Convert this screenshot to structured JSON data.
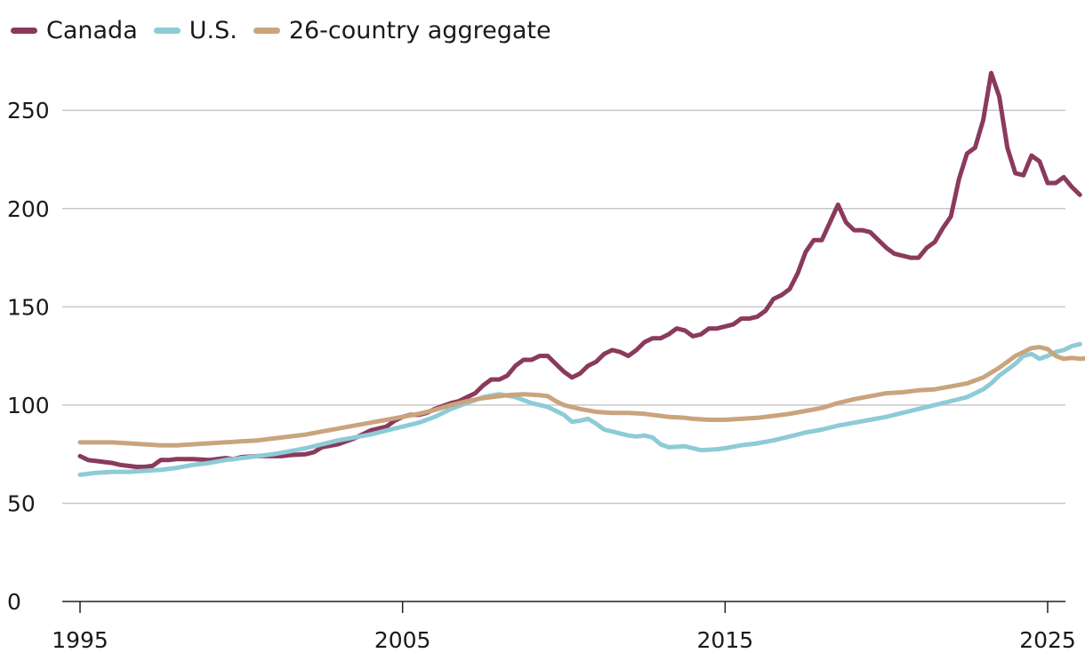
{
  "chart_data": {
    "type": "line",
    "title": "",
    "xlabel": "",
    "ylabel": "",
    "xlim": [
      1995,
      2025
    ],
    "ylim": [
      0,
      270
    ],
    "yticks": [
      0,
      50,
      100,
      150,
      200,
      250
    ],
    "xticks": [
      1995,
      2005,
      2015,
      2025
    ],
    "grid": true,
    "legend_position": "top-left",
    "series": [
      {
        "name": "Canada",
        "color": "#8a3a5c",
        "points": [
          [
            1995.0,
            74
          ],
          [
            1995.25,
            72
          ],
          [
            1995.5,
            71.5
          ],
          [
            1995.75,
            71
          ],
          [
            1996.0,
            70.5
          ],
          [
            1996.25,
            69.5
          ],
          [
            1996.5,
            69
          ],
          [
            1996.75,
            68.5
          ],
          [
            1997.0,
            68.5
          ],
          [
            1997.25,
            69
          ],
          [
            1997.5,
            72
          ],
          [
            1997.75,
            72
          ],
          [
            1998.0,
            72.5
          ],
          [
            1998.5,
            72.5
          ],
          [
            1999.0,
            72
          ],
          [
            1999.5,
            73
          ],
          [
            1999.75,
            72.5
          ],
          [
            2000.0,
            73.5
          ],
          [
            2000.5,
            74
          ],
          [
            2001.0,
            74
          ],
          [
            2001.25,
            74
          ],
          [
            2001.5,
            74.5
          ],
          [
            2002.0,
            75
          ],
          [
            2002.25,
            76
          ],
          [
            2002.5,
            78.5
          ],
          [
            2003.0,
            80
          ],
          [
            2003.5,
            83
          ],
          [
            2004.0,
            87
          ],
          [
            2004.5,
            89
          ],
          [
            2004.75,
            92
          ],
          [
            2005.0,
            94
          ],
          [
            2005.25,
            95
          ],
          [
            2005.5,
            95
          ],
          [
            2005.75,
            96
          ],
          [
            2006.0,
            98
          ],
          [
            2006.25,
            99.5
          ],
          [
            2006.5,
            101
          ],
          [
            2006.75,
            102
          ],
          [
            2007.0,
            104
          ],
          [
            2007.25,
            106
          ],
          [
            2007.5,
            110
          ],
          [
            2007.75,
            113
          ],
          [
            2008.0,
            113
          ],
          [
            2008.25,
            115
          ],
          [
            2008.5,
            120
          ],
          [
            2008.75,
            123
          ],
          [
            2009.0,
            123
          ],
          [
            2009.25,
            125
          ],
          [
            2009.5,
            125
          ],
          [
            2009.75,
            121
          ],
          [
            2010.0,
            117
          ],
          [
            2010.25,
            114
          ],
          [
            2010.5,
            116
          ],
          [
            2010.75,
            120
          ],
          [
            2011.0,
            122
          ],
          [
            2011.25,
            126
          ],
          [
            2011.5,
            128
          ],
          [
            2011.75,
            127
          ],
          [
            2012.0,
            125
          ],
          [
            2012.25,
            128
          ],
          [
            2012.5,
            132
          ],
          [
            2012.75,
            134
          ],
          [
            2013.0,
            134
          ],
          [
            2013.25,
            136
          ],
          [
            2013.5,
            139
          ],
          [
            2013.75,
            138
          ],
          [
            2014.0,
            135
          ],
          [
            2014.25,
            136
          ],
          [
            2014.5,
            139
          ],
          [
            2014.75,
            139
          ],
          [
            2015.0,
            140
          ],
          [
            2015.25,
            141
          ],
          [
            2015.5,
            144
          ],
          [
            2015.75,
            144
          ],
          [
            2016.0,
            145
          ],
          [
            2016.25,
            148
          ],
          [
            2016.5,
            154
          ],
          [
            2016.75,
            156
          ],
          [
            2017.0,
            159
          ],
          [
            2017.25,
            167
          ],
          [
            2017.5,
            178
          ],
          [
            2017.75,
            184
          ],
          [
            2018.0,
            184
          ],
          [
            2018.25,
            193
          ],
          [
            2018.5,
            202
          ],
          [
            2018.75,
            193
          ],
          [
            2019.0,
            189
          ],
          [
            2019.25,
            189
          ],
          [
            2019.5,
            188
          ],
          [
            2019.75,
            184
          ],
          [
            2020.0,
            180
          ],
          [
            2020.25,
            177
          ],
          [
            2020.5,
            176
          ],
          [
            2020.75,
            175
          ],
          [
            2021.0,
            175
          ],
          [
            2021.25,
            180
          ],
          [
            2021.5,
            183
          ],
          [
            2021.75,
            190
          ],
          [
            2022.0,
            196
          ],
          [
            2022.25,
            215
          ],
          [
            2022.5,
            228
          ],
          [
            2022.75,
            231
          ],
          [
            2023.0,
            245
          ],
          [
            2023.25,
            269
          ],
          [
            2023.5,
            257
          ],
          [
            2023.75,
            231
          ],
          [
            2024.0,
            218
          ],
          [
            2024.25,
            217
          ],
          [
            2024.5,
            227
          ],
          [
            2024.75,
            224
          ],
          [
            2025.0,
            213
          ],
          [
            2025.25,
            213
          ],
          [
            2025.5,
            216
          ],
          [
            2025.75,
            211
          ],
          [
            2026.0,
            207
          ]
        ]
      },
      {
        "name": "U.S.",
        "color": "#8dcbd6",
        "points": [
          [
            1995.0,
            64.5
          ],
          [
            1995.5,
            65.5
          ],
          [
            1996.0,
            66
          ],
          [
            1996.5,
            66
          ],
          [
            1997.0,
            66.5
          ],
          [
            1997.5,
            67
          ],
          [
            1998.0,
            68
          ],
          [
            1998.5,
            69.5
          ],
          [
            1999.0,
            70.5
          ],
          [
            1999.5,
            72
          ],
          [
            2000.0,
            73
          ],
          [
            2000.5,
            74
          ],
          [
            2001.0,
            75
          ],
          [
            2001.5,
            76.5
          ],
          [
            2002.0,
            78
          ],
          [
            2002.5,
            80
          ],
          [
            2003.0,
            82
          ],
          [
            2003.5,
            83.5
          ],
          [
            2004.0,
            85
          ],
          [
            2004.5,
            87
          ],
          [
            2005.0,
            89
          ],
          [
            2005.5,
            91
          ],
          [
            2006.0,
            94
          ],
          [
            2006.5,
            98
          ],
          [
            2007.0,
            101
          ],
          [
            2007.5,
            104
          ],
          [
            2008.0,
            105.5
          ],
          [
            2008.5,
            104
          ],
          [
            2009.0,
            101
          ],
          [
            2009.5,
            99
          ],
          [
            2010.0,
            95
          ],
          [
            2010.25,
            91.5
          ],
          [
            2010.5,
            92
          ],
          [
            2010.75,
            93
          ],
          [
            2011.0,
            90.5
          ],
          [
            2011.25,
            87.5
          ],
          [
            2011.5,
            86.5
          ],
          [
            2012.0,
            84.5
          ],
          [
            2012.25,
            84
          ],
          [
            2012.5,
            84.5
          ],
          [
            2012.75,
            83.5
          ],
          [
            2013.0,
            80
          ],
          [
            2013.25,
            78.5
          ],
          [
            2013.75,
            79
          ],
          [
            2014.0,
            78
          ],
          [
            2014.25,
            77
          ],
          [
            2014.75,
            77.5
          ],
          [
            2015.0,
            78
          ],
          [
            2015.5,
            79.5
          ],
          [
            2016.0,
            80.5
          ],
          [
            2016.5,
            82
          ],
          [
            2017.0,
            84
          ],
          [
            2017.5,
            86
          ],
          [
            2018.0,
            87.5
          ],
          [
            2018.5,
            89.5
          ],
          [
            2019.0,
            91
          ],
          [
            2019.5,
            92.5
          ],
          [
            2020.0,
            94
          ],
          [
            2020.5,
            96
          ],
          [
            2021.0,
            98
          ],
          [
            2021.5,
            100
          ],
          [
            2022.0,
            102
          ],
          [
            2022.5,
            104
          ],
          [
            2023.0,
            108
          ],
          [
            2023.25,
            111
          ],
          [
            2023.5,
            115
          ],
          [
            2023.75,
            118
          ],
          [
            2024.0,
            121
          ],
          [
            2024.25,
            125
          ],
          [
            2024.5,
            126
          ],
          [
            2024.75,
            123.5
          ],
          [
            2025.0,
            125
          ],
          [
            2025.25,
            127
          ],
          [
            2025.5,
            128
          ],
          [
            2025.75,
            130
          ],
          [
            2026.0,
            131
          ]
        ]
      },
      {
        "name": "26-country aggregate",
        "color": "#c9a47c",
        "points": [
          [
            1995.0,
            81
          ],
          [
            1995.5,
            81
          ],
          [
            1996.0,
            81
          ],
          [
            1996.5,
            80.5
          ],
          [
            1997.0,
            80
          ],
          [
            1997.5,
            79.5
          ],
          [
            1998.0,
            79.5
          ],
          [
            1998.5,
            80
          ],
          [
            1999.0,
            80.5
          ],
          [
            1999.5,
            81
          ],
          [
            2000.0,
            81.5
          ],
          [
            2000.5,
            82
          ],
          [
            2001.0,
            83
          ],
          [
            2001.5,
            84
          ],
          [
            2002.0,
            85
          ],
          [
            2002.5,
            86.5
          ],
          [
            2003.0,
            88
          ],
          [
            2003.5,
            89.5
          ],
          [
            2004.0,
            91
          ],
          [
            2004.5,
            92.5
          ],
          [
            2005.0,
            94
          ],
          [
            2005.5,
            95.5
          ],
          [
            2006.0,
            97.5
          ],
          [
            2006.5,
            100
          ],
          [
            2007.0,
            102
          ],
          [
            2007.5,
            103.5
          ],
          [
            2008.0,
            104.5
          ],
          [
            2008.25,
            105
          ],
          [
            2008.75,
            105.5
          ],
          [
            2009.25,
            105
          ],
          [
            2009.5,
            104.5
          ],
          [
            2009.75,
            102
          ],
          [
            2010.0,
            100
          ],
          [
            2010.5,
            98
          ],
          [
            2011.0,
            96.5
          ],
          [
            2011.5,
            96
          ],
          [
            2012.0,
            96
          ],
          [
            2012.5,
            95.5
          ],
          [
            2013.0,
            94.5
          ],
          [
            2013.25,
            94
          ],
          [
            2013.75,
            93.5
          ],
          [
            2014.0,
            93
          ],
          [
            2014.5,
            92.5
          ],
          [
            2015.0,
            92.5
          ],
          [
            2015.5,
            93
          ],
          [
            2016.0,
            93.5
          ],
          [
            2016.5,
            94.5
          ],
          [
            2017.0,
            95.5
          ],
          [
            2017.5,
            97
          ],
          [
            2018.0,
            98.5
          ],
          [
            2018.5,
            101
          ],
          [
            2019.0,
            103
          ],
          [
            2019.5,
            104.5
          ],
          [
            2020.0,
            106
          ],
          [
            2020.5,
            106.5
          ],
          [
            2021.0,
            107.5
          ],
          [
            2021.5,
            108
          ],
          [
            2022.0,
            109.5
          ],
          [
            2022.5,
            111
          ],
          [
            2023.0,
            114
          ],
          [
            2023.5,
            119
          ],
          [
            2024.0,
            125
          ],
          [
            2024.5,
            129
          ],
          [
            2024.75,
            129.5
          ],
          [
            2025.0,
            128.5
          ],
          [
            2025.25,
            125
          ],
          [
            2025.5,
            123.5
          ],
          [
            2025.75,
            124
          ],
          [
            2026.0,
            123.5
          ],
          [
            2026.5,
            124
          ],
          [
            2026.75,
            124
          ],
          [
            2027.0,
            124
          ]
        ]
      }
    ]
  }
}
